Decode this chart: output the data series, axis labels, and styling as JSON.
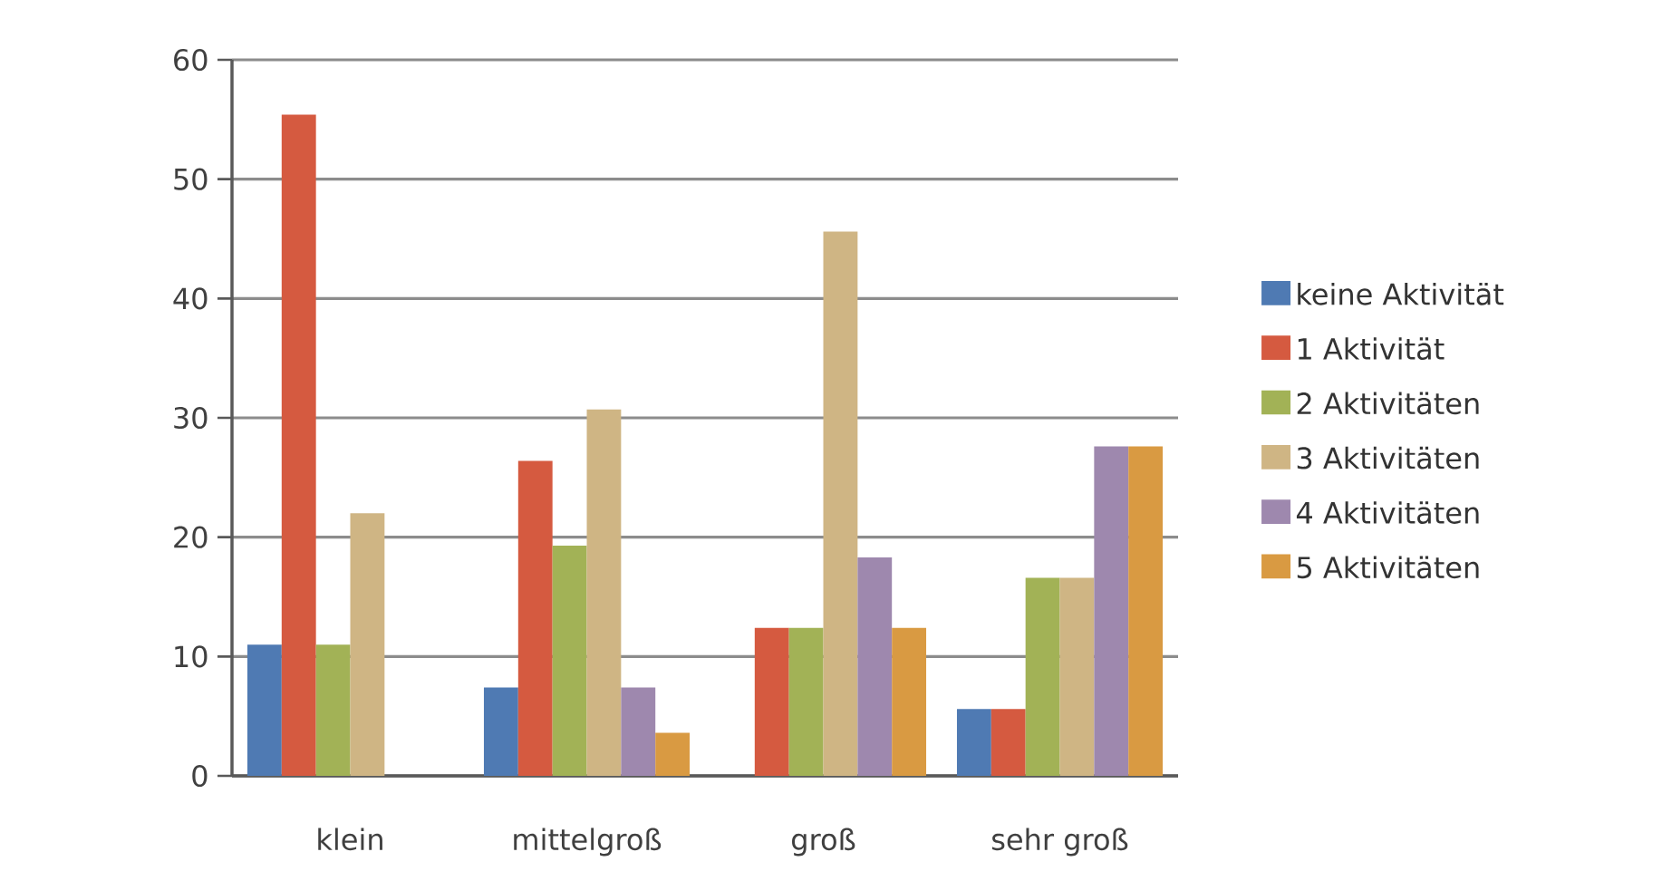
{
  "chart_data": {
    "type": "bar",
    "categories": [
      "klein",
      "mittelgroß",
      "groß",
      "sehr groß"
    ],
    "series": [
      {
        "name": "keine Aktivität",
        "color": "#4f7ab3",
        "values": [
          11.0,
          7.4,
          0,
          5.6
        ]
      },
      {
        "name": "1 Aktivität",
        "color": "#d55a40",
        "values": [
          55.4,
          26.4,
          12.4,
          5.6
        ]
      },
      {
        "name": "2 Aktivitäten",
        "color": "#a2b256",
        "values": [
          11.0,
          19.3,
          12.4,
          16.6
        ]
      },
      {
        "name": "3 Aktivitäten",
        "color": "#cfb584",
        "values": [
          22.0,
          30.7,
          45.6,
          16.6
        ]
      },
      {
        "name": "4 Aktivitäten",
        "color": "#9e88ae",
        "values": [
          0,
          7.4,
          18.3,
          27.6
        ]
      },
      {
        "name": "5 Aktivitäten",
        "color": "#d99a42",
        "values": [
          0,
          3.6,
          12.4,
          27.6
        ]
      }
    ],
    "ylim": [
      0,
      60
    ],
    "yticks": [
      0,
      10,
      20,
      30,
      40,
      50,
      60
    ],
    "grid": "y",
    "legend": "right"
  }
}
